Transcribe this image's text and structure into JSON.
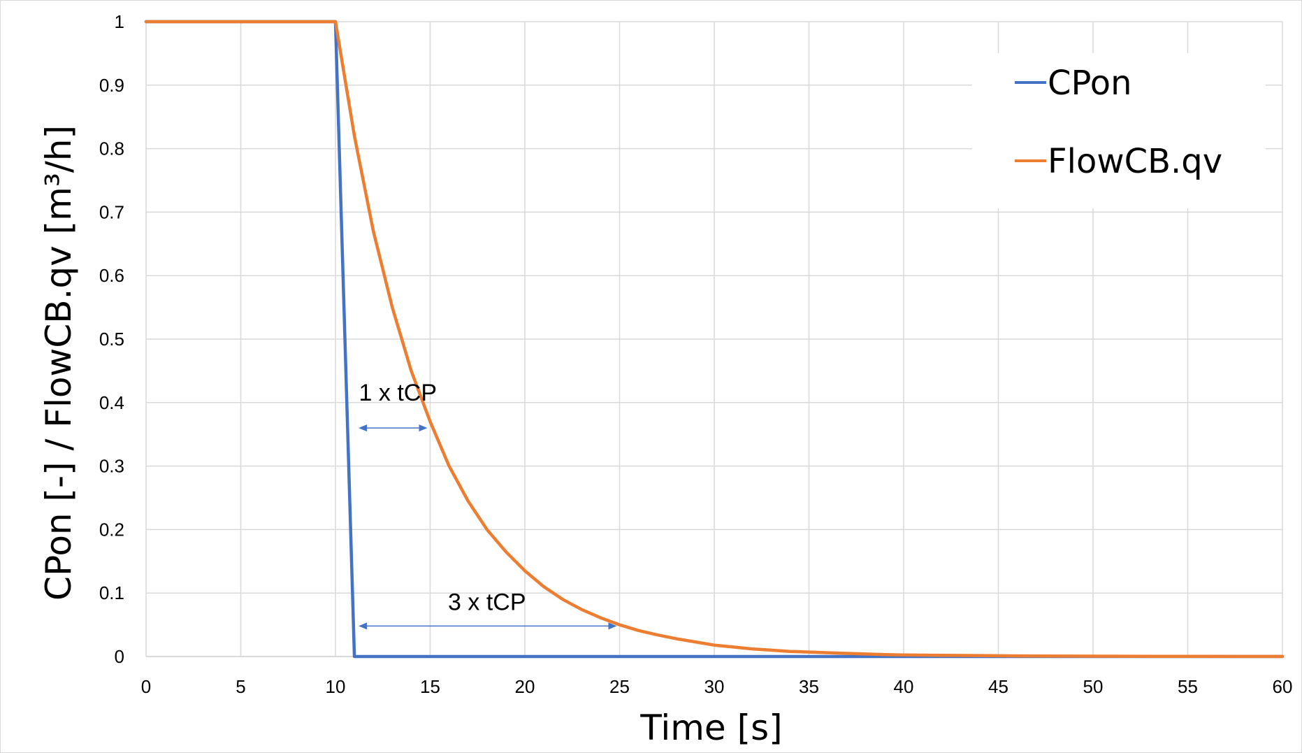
{
  "chart_data": {
    "type": "line",
    "xlabel": "Time [s]",
    "ylabel": "CPon [-] / FlowCB.qv [m³/h]",
    "xlim": [
      0,
      60
    ],
    "ylim": [
      0,
      1
    ],
    "x_ticks": [
      "0",
      "5",
      "10",
      "15",
      "20",
      "25",
      "30",
      "35",
      "40",
      "45",
      "50",
      "55",
      "60"
    ],
    "y_ticks": [
      "0",
      "0.1",
      "0.2",
      "0.3",
      "0.4",
      "0.5",
      "0.6",
      "0.7",
      "0.8",
      "0.9",
      "1"
    ],
    "grid": true,
    "legend_position": "top-right",
    "series": [
      {
        "name": "CPon",
        "color": "#4472c4",
        "x": [
          0,
          10,
          11,
          60
        ],
        "y": [
          1,
          1,
          0,
          0
        ]
      },
      {
        "name": "FlowCB.qv",
        "color": "#ed7d31",
        "x": [
          0,
          10,
          11,
          12,
          13,
          14,
          15,
          16,
          17,
          18,
          19,
          20,
          21,
          22,
          23,
          24,
          25,
          26,
          27,
          28,
          29,
          30,
          31,
          32,
          33,
          34,
          35,
          36,
          37,
          38,
          39,
          40,
          42,
          44,
          46,
          48,
          50,
          55,
          60
        ],
        "y": [
          1,
          1,
          0.82,
          0.67,
          0.55,
          0.45,
          0.37,
          0.3,
          0.245,
          0.2,
          0.165,
          0.135,
          0.11,
          0.09,
          0.074,
          0.061,
          0.05,
          0.041,
          0.034,
          0.028,
          0.023,
          0.018,
          0.015,
          0.012,
          0.01,
          0.008,
          0.007,
          0.006,
          0.005,
          0.004,
          0.003,
          0.0025,
          0.002,
          0.0015,
          0.001,
          0.0007,
          0.0005,
          0.0002,
          0.0001
        ]
      }
    ],
    "annotations": [
      {
        "text": "1 x tCP",
        "x_from": 11,
        "x_to": 15,
        "y": 0.36,
        "label_y": 0.4
      },
      {
        "text": "3 x tCP",
        "x_from": 11,
        "x_to": 25,
        "y": 0.048,
        "label_y": 0.07
      }
    ]
  }
}
